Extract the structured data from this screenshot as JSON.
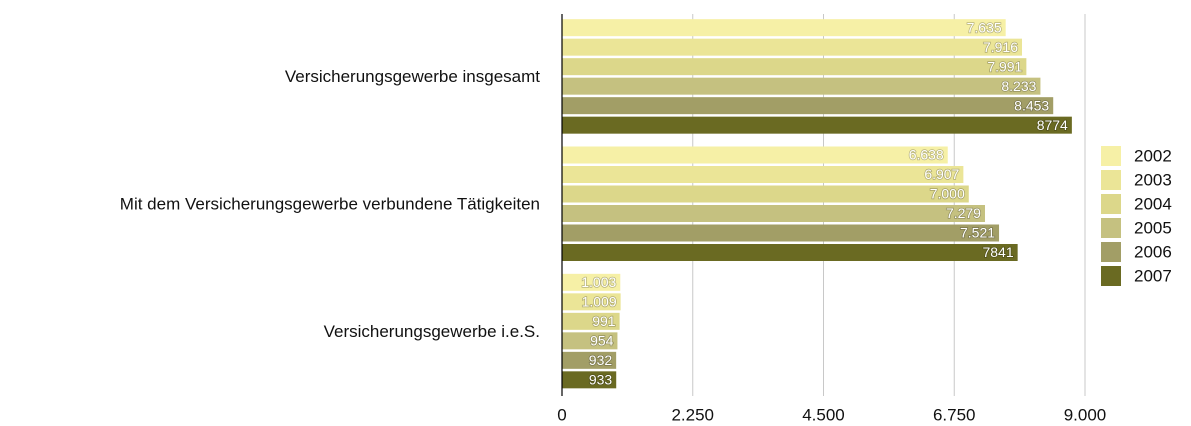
{
  "chart_data": {
    "type": "bar",
    "orientation": "horizontal",
    "categories": [
      "Versicherungsgewerbe insgesamt",
      "Mit dem Versicherungsgewerbe verbundene Tätigkeiten",
      "Versicherungsgewerbe i.e.S."
    ],
    "series": [
      {
        "name": "2002",
        "color": "#f6f0a6",
        "values": [
          7635,
          6638,
          1003
        ],
        "value_labels": [
          "7.635",
          "6.638",
          "1.003"
        ]
      },
      {
        "name": "2003",
        "color": "#ebe597",
        "values": [
          7916,
          6907,
          1009
        ],
        "value_labels": [
          "7.916",
          "6.907",
          "1.009"
        ]
      },
      {
        "name": "2004",
        "color": "#dcd78a",
        "values": [
          7991,
          7000,
          991
        ],
        "value_labels": [
          "7.991",
          "7.000",
          "991"
        ]
      },
      {
        "name": "2005",
        "color": "#c5c180",
        "values": [
          8233,
          7279,
          954
        ],
        "value_labels": [
          "8.233",
          "7.279",
          "954"
        ]
      },
      {
        "name": "2006",
        "color": "#a29e66",
        "values": [
          8453,
          7521,
          932
        ],
        "value_labels": [
          "8.453",
          "7.521",
          "932"
        ]
      },
      {
        "name": "2007",
        "color": "#6a6a22",
        "values": [
          8774,
          7841,
          933
        ],
        "value_labels": [
          "8774",
          "7841",
          "933"
        ]
      }
    ],
    "xlim": [
      0,
      9000
    ],
    "xticks": [
      0,
      {
        "value": 2250,
        "label": "2.250"
      },
      {
        "value": 4500,
        "label": "4.500"
      },
      {
        "value": 6750,
        "label": "6.750"
      },
      {
        "value": 9000,
        "label": "9.000"
      }
    ],
    "grid": true,
    "legend": "right"
  }
}
